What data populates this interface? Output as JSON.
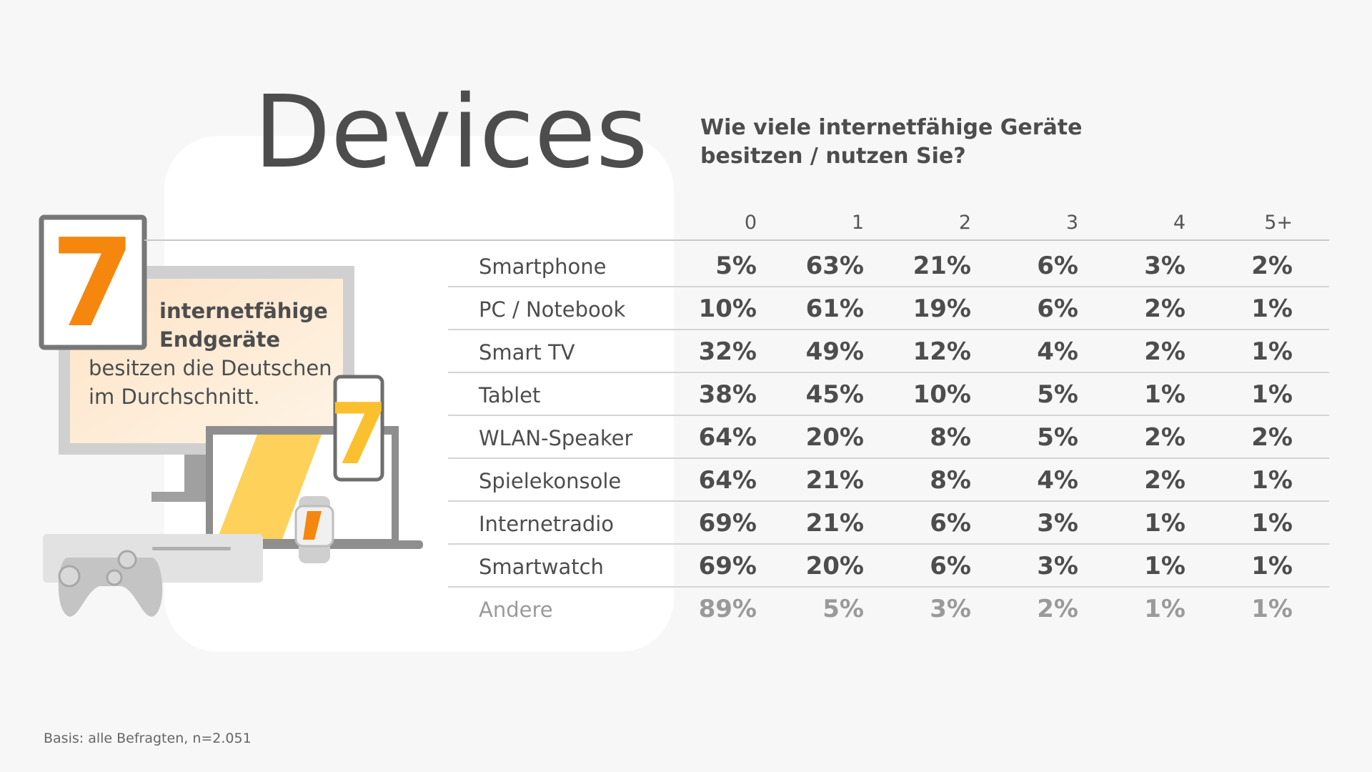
{
  "title": "Devices",
  "question": [
    "Wie viele internetfähige Geräte",
    "besitzen / nutzen Sie?"
  ],
  "callout": {
    "number": "7",
    "bold": [
      "internetfähige",
      "Endgeräte"
    ],
    "text": [
      "besitzen die Deutschen",
      "im Durchschnitt."
    ],
    "phone_number": "7"
  },
  "table": {
    "columns": [
      "0",
      "1",
      "2",
      "3",
      "4",
      "5+"
    ],
    "rows": [
      [
        "Smartphone",
        "5%",
        "63%",
        "21%",
        "6%",
        "3%",
        "2%"
      ],
      [
        "PC / Notebook",
        "10%",
        "61%",
        "19%",
        "6%",
        "2%",
        "1%"
      ],
      [
        "Smart TV",
        "32%",
        "49%",
        "12%",
        "4%",
        "2%",
        "1%"
      ],
      [
        "Tablet",
        "38%",
        "45%",
        "10%",
        "5%",
        "1%",
        "1%"
      ],
      [
        "WLAN-Speaker",
        "64%",
        "20%",
        "8%",
        "5%",
        "2%",
        "2%"
      ],
      [
        "Spielekonsole",
        "64%",
        "21%",
        "8%",
        "4%",
        "2%",
        "1%"
      ],
      [
        "Internetradio",
        "69%",
        "21%",
        "6%",
        "3%",
        "1%",
        "1%"
      ],
      [
        "Smartwatch",
        "69%",
        "20%",
        "6%",
        "3%",
        "1%",
        "1%"
      ],
      [
        "Andere",
        "89%",
        "5%",
        "3%",
        "2%",
        "1%",
        "1%"
      ]
    ]
  },
  "footnote": "Basis: alle Befragten, n=2.051"
}
